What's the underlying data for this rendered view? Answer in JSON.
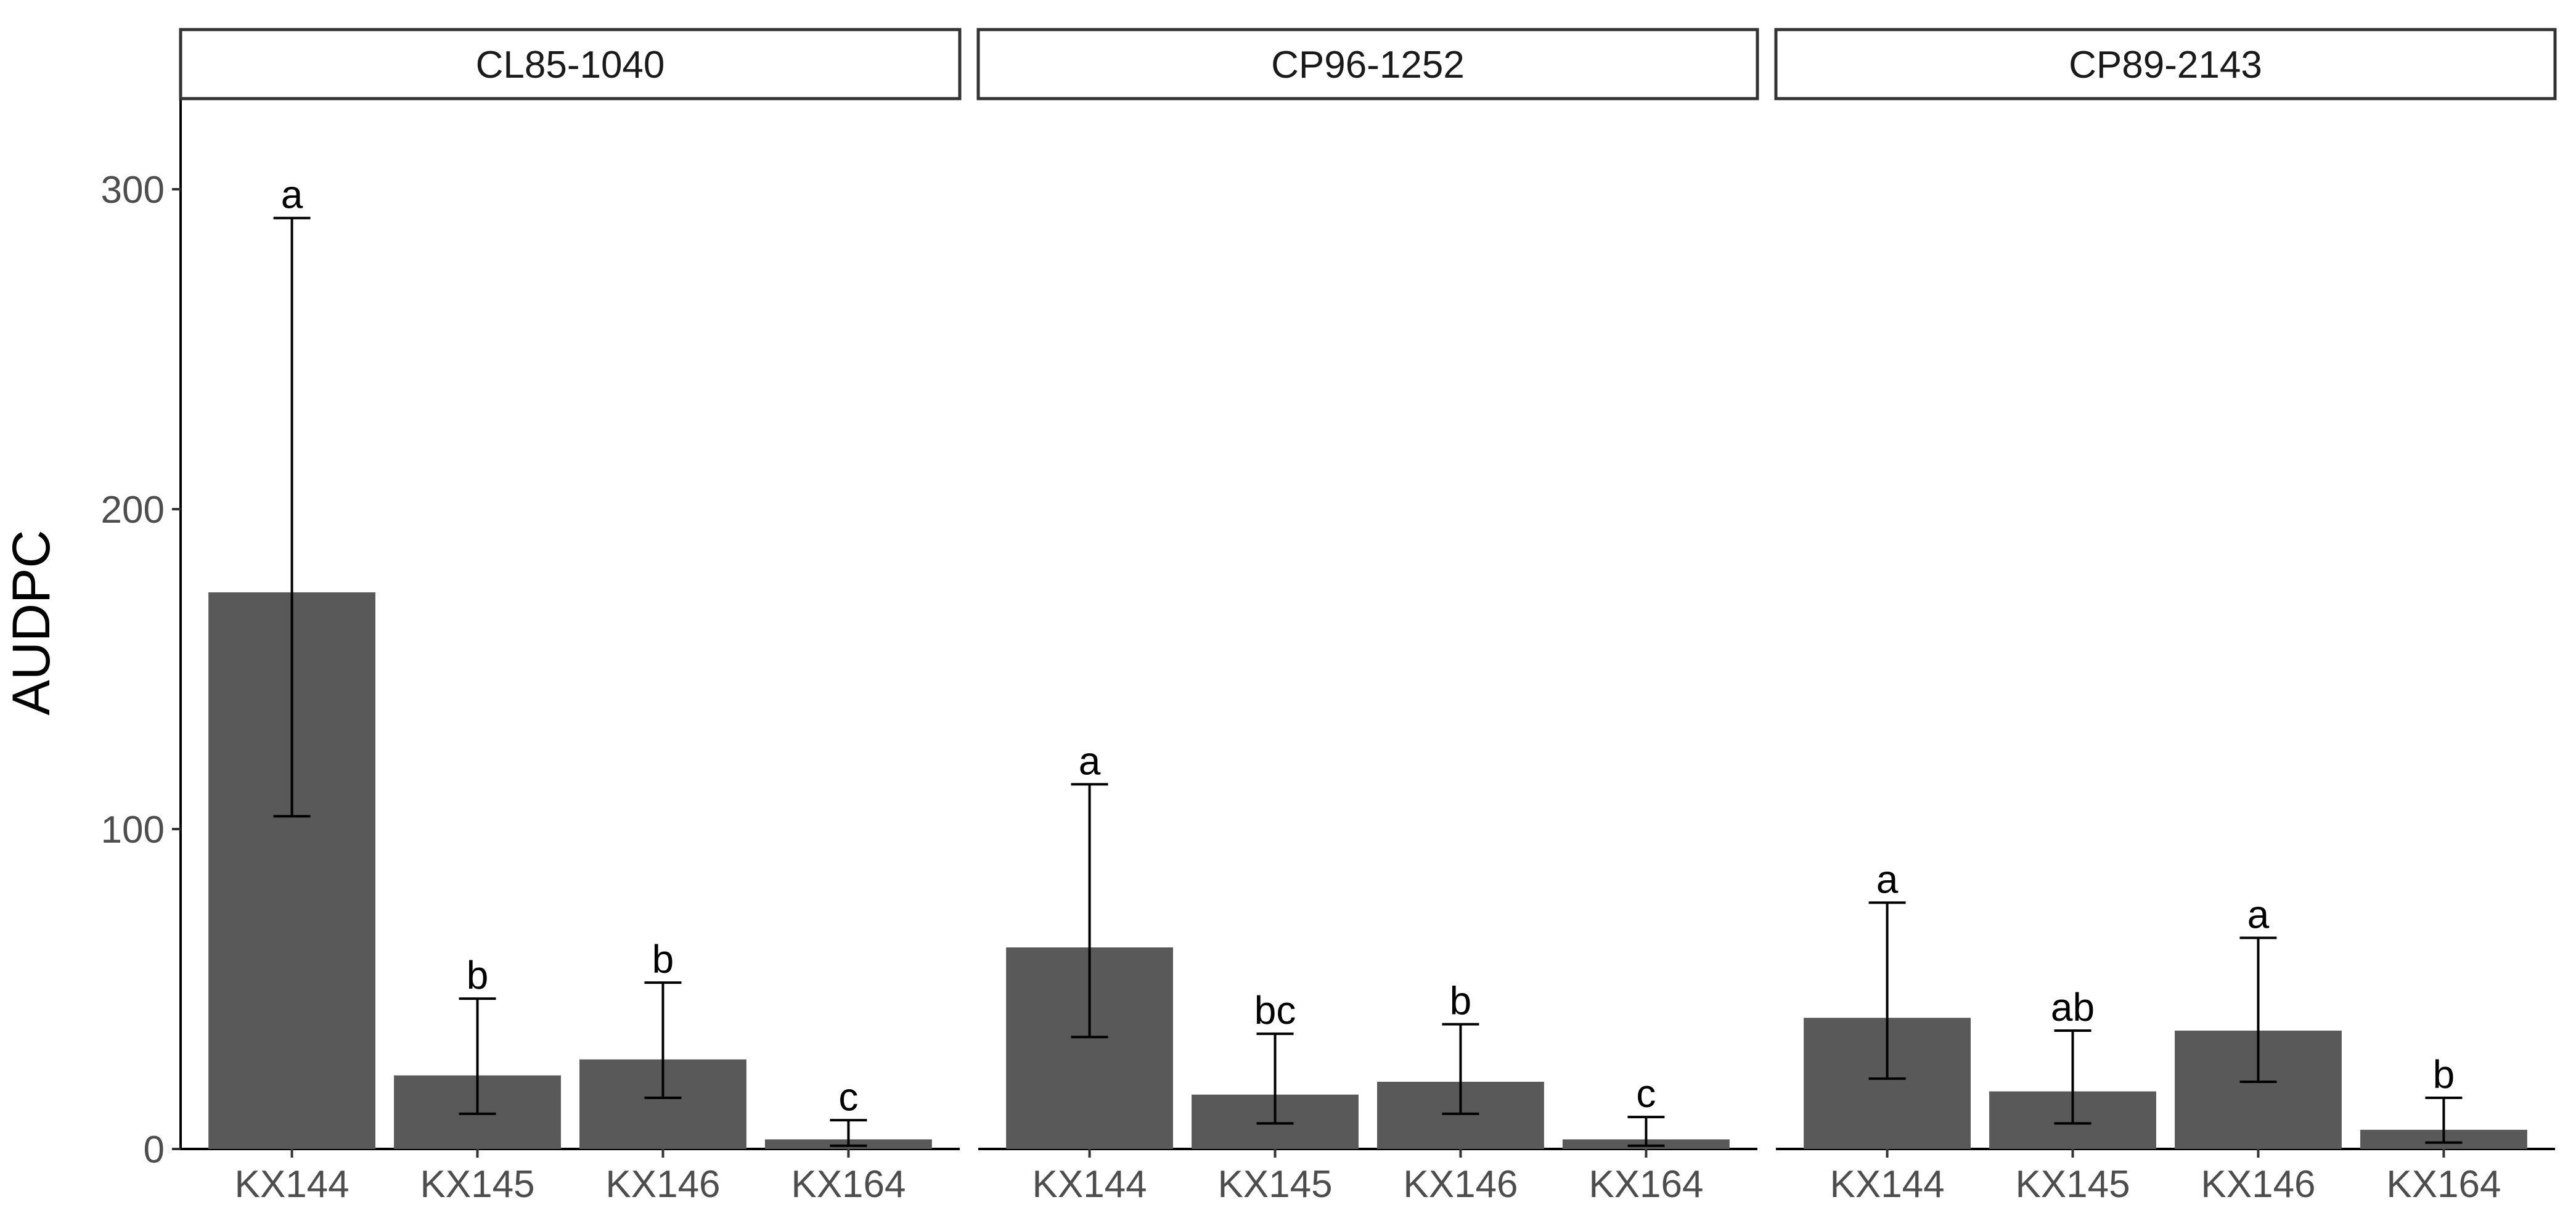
{
  "chart_data": {
    "type": "bar",
    "ylabel": "AUDPC",
    "xlabel": "",
    "ylim": [
      0,
      325
    ],
    "yticks": [
      0,
      100,
      200,
      300
    ],
    "categories": [
      "KX144",
      "KX145",
      "KX146",
      "KX164"
    ],
    "bar_color": "#595959",
    "facets": [
      {
        "name": "CL85-1040",
        "values": [
          174,
          23,
          28,
          3
        ],
        "error_low": [
          104,
          11,
          16,
          1
        ],
        "error_high": [
          291,
          47,
          52,
          9
        ],
        "letters": [
          "a",
          "b",
          "b",
          "c"
        ]
      },
      {
        "name": "CP96-1252",
        "values": [
          63,
          17,
          21,
          3
        ],
        "error_low": [
          35,
          8,
          11,
          1
        ],
        "error_high": [
          114,
          36,
          39,
          10
        ],
        "letters": [
          "a",
          "bc",
          "b",
          "c"
        ]
      },
      {
        "name": "CP89-2143",
        "values": [
          41,
          18,
          37,
          6
        ],
        "error_low": [
          22,
          8,
          21,
          2
        ],
        "error_high": [
          77,
          37,
          66,
          16
        ],
        "letters": [
          "a",
          "ab",
          "a",
          "b"
        ]
      }
    ]
  }
}
